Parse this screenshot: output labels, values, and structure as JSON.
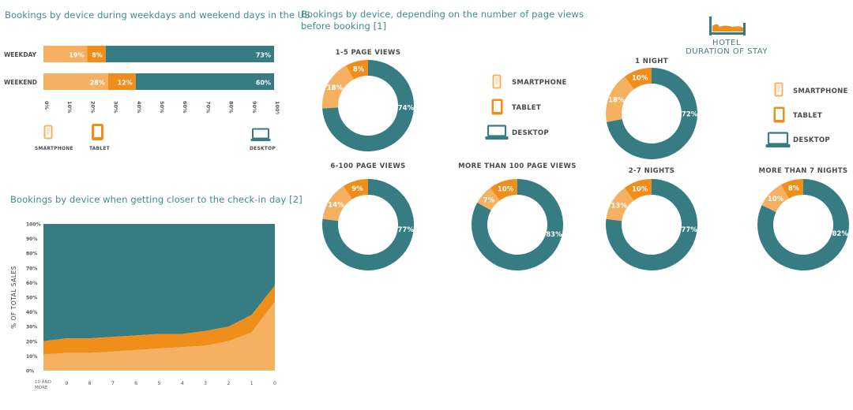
{
  "colors": {
    "smartphone": "#f6b062",
    "tablet": "#f08e1c",
    "desktop": "#367c82",
    "bg": "#ffffff"
  },
  "chart_data": [
    {
      "id": "weekday-bars",
      "type": "bar",
      "orientation": "horizontal",
      "stacked": true,
      "title": "Bookings by device during weekdays and weekend days in the US",
      "categories": [
        "WEEKDAY",
        "WEEKEND"
      ],
      "series": [
        {
          "name": "SMARTPHONE",
          "values": [
            19,
            28
          ]
        },
        {
          "name": "TABLET",
          "values": [
            8,
            12
          ]
        },
        {
          "name": "DESKTOP",
          "values": [
            73,
            60
          ]
        }
      ],
      "value_labels": [
        [
          "19%",
          "8%",
          "73%"
        ],
        [
          "28%",
          "12%",
          "60%"
        ]
      ],
      "xlim": [
        0,
        100
      ],
      "xticks": [
        "0%",
        "10%",
        "20%",
        "30%",
        "40%",
        "50%",
        "60%",
        "70%",
        "80%",
        "90%",
        "100%"
      ]
    },
    {
      "id": "checkin-area",
      "type": "area",
      "stacked": true,
      "title": "Bookings by device when getting closer to the check-in day [2]",
      "ylabel": "% OF TOTAL SALES",
      "x": [
        "10 AND MORE",
        "9",
        "8",
        "7",
        "6",
        "5",
        "4",
        "3",
        "2",
        "1",
        "0"
      ],
      "series": [
        {
          "name": "SMARTPHONE",
          "values": [
            11,
            12,
            12,
            13,
            14,
            15,
            16,
            17,
            20,
            26,
            47
          ]
        },
        {
          "name": "TABLET",
          "values": [
            9,
            10,
            10,
            10,
            10,
            10,
            9,
            10,
            10,
            12,
            11
          ]
        },
        {
          "name": "DESKTOP",
          "values": [
            80,
            78,
            78,
            77,
            76,
            75,
            75,
            73,
            70,
            62,
            42
          ]
        }
      ],
      "ylim": [
        0,
        100
      ],
      "yticks": [
        "0%",
        "10%",
        "20%",
        "30%",
        "40%",
        "50%",
        "60%",
        "70%",
        "80%",
        "90%",
        "100%"
      ]
    },
    {
      "id": "pageviews-donuts",
      "type": "pie",
      "title": "Bookings by device, depending on the number of page views before booking [1]",
      "charts": [
        {
          "title": "1-5 PAGE VIEWS",
          "values": [
            18,
            8,
            74
          ],
          "labels": [
            "18%",
            "8%",
            "74%"
          ]
        },
        {
          "title": "6-100 PAGE VIEWS",
          "values": [
            14,
            9,
            77
          ],
          "labels": [
            "14%",
            "9%",
            "77%"
          ]
        },
        {
          "title": "MORE THAN 100 PAGE VIEWS",
          "values": [
            7,
            10,
            83
          ],
          "labels": [
            "7%",
            "10%",
            "83%"
          ]
        }
      ],
      "series_names": [
        "SMARTPHONE",
        "TABLET",
        "DESKTOP"
      ]
    },
    {
      "id": "stay-donuts",
      "type": "pie",
      "title": "HOTEL DURATION OF STAY",
      "charts": [
        {
          "title": "1 NIGHT",
          "values": [
            18,
            10,
            72
          ],
          "labels": [
            "18%",
            "10%",
            "72%"
          ]
        },
        {
          "title": "2-7 NIGHTS",
          "values": [
            13,
            10,
            77
          ],
          "labels": [
            "13%",
            "10%",
            "77%"
          ]
        },
        {
          "title": "MORE THAN 7 NIGHTS",
          "values": [
            10,
            8,
            82
          ],
          "labels": [
            "10%",
            "8%",
            "82%"
          ]
        }
      ],
      "series_names": [
        "SMARTPHONE",
        "TABLET",
        "DESKTOP"
      ]
    }
  ],
  "text": {
    "bars_title": "Bookings by device during weekdays and weekend days in the US",
    "area_title": "Bookings by device when getting closer to the check-in day [2]",
    "pv_title_1": "Bookings by device, depending on the number of page views",
    "pv_title_2": "before booking [1]",
    "hotel_1": "HOTEL",
    "hotel_2": "DURATION OF STAY",
    "legend_smartphone": "SMARTPHONE",
    "legend_tablet": "TABLET",
    "legend_desktop": "DESKTOP"
  },
  "icons": [
    "smartphone-icon",
    "tablet-icon",
    "desktop-icon",
    "bed-icon"
  ]
}
